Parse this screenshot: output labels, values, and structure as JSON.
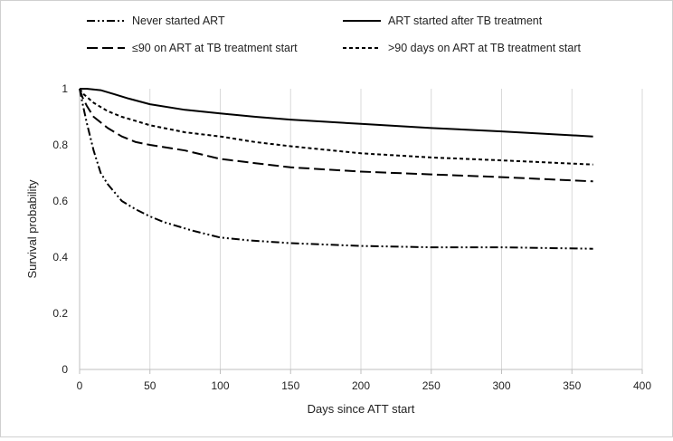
{
  "chart_data": {
    "type": "line",
    "title": "",
    "xlabel": "Days since ATT start",
    "ylabel": "Survival probability",
    "xlim": [
      0,
      400
    ],
    "ylim": [
      0,
      1
    ],
    "xticks": [
      0,
      50,
      100,
      150,
      200,
      250,
      300,
      350,
      400
    ],
    "yticks": [
      0,
      0.2,
      0.4,
      0.6,
      0.8,
      1
    ],
    "xtick_labels": [
      "0",
      "50",
      "100",
      "150",
      "200",
      "250",
      "300",
      "350",
      "400"
    ],
    "ytick_labels": [
      "0",
      "0.2",
      "0.4",
      "0.6",
      "0.8",
      "1"
    ],
    "grid": "vertical",
    "legend_position": "top",
    "series": [
      {
        "name": "Never started ART",
        "style": "dash-dot-dot",
        "color": "#000000",
        "x": [
          0,
          2,
          5,
          10,
          15,
          20,
          25,
          30,
          40,
          50,
          60,
          80,
          100,
          120,
          150,
          200,
          250,
          300,
          365
        ],
        "y": [
          1.0,
          0.95,
          0.88,
          0.78,
          0.7,
          0.66,
          0.63,
          0.6,
          0.57,
          0.545,
          0.525,
          0.495,
          0.47,
          0.46,
          0.45,
          0.44,
          0.435,
          0.435,
          0.43
        ]
      },
      {
        "name": "ART started after TB treatment",
        "style": "solid",
        "color": "#000000",
        "x": [
          0,
          5,
          15,
          25,
          35,
          50,
          75,
          100,
          125,
          150,
          200,
          250,
          300,
          365
        ],
        "y": [
          1.0,
          1.0,
          0.995,
          0.98,
          0.965,
          0.945,
          0.925,
          0.912,
          0.9,
          0.89,
          0.875,
          0.86,
          0.848,
          0.83
        ]
      },
      {
        "name": "≤90 on ART at TB treatment start",
        "style": "long-dash",
        "color": "#000000",
        "x": [
          0,
          2,
          5,
          10,
          20,
          30,
          40,
          50,
          75,
          100,
          125,
          150,
          200,
          250,
          300,
          365
        ],
        "y": [
          1.0,
          0.97,
          0.94,
          0.9,
          0.86,
          0.83,
          0.81,
          0.8,
          0.78,
          0.75,
          0.735,
          0.72,
          0.705,
          0.695,
          0.685,
          0.67
        ]
      },
      {
        "name": ">90 days on ART at TB treatment start",
        "style": "short-dash",
        "color": "#000000",
        "x": [
          0,
          3,
          10,
          20,
          30,
          40,
          50,
          75,
          100,
          125,
          150,
          200,
          250,
          300,
          365
        ],
        "y": [
          1.0,
          0.98,
          0.95,
          0.92,
          0.9,
          0.885,
          0.87,
          0.845,
          0.83,
          0.81,
          0.795,
          0.77,
          0.755,
          0.745,
          0.73
        ]
      }
    ]
  }
}
